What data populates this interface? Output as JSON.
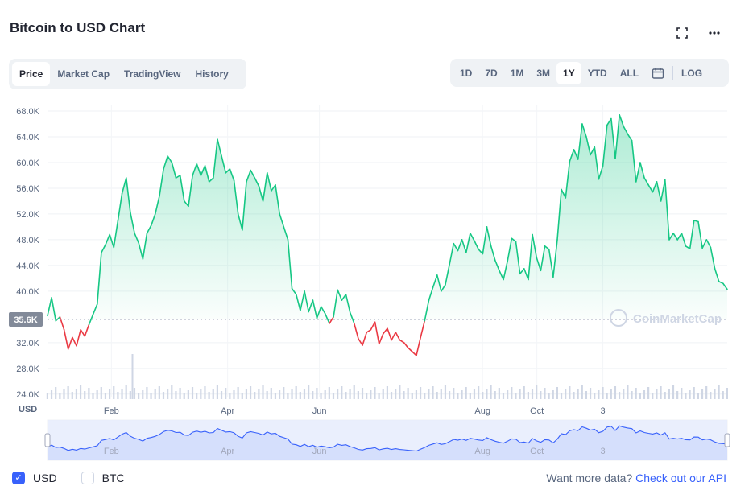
{
  "header": {
    "title": "Bitcoin to USD Chart"
  },
  "icons": {
    "fullscreen": "fullscreen-icon",
    "more": "more-icon",
    "calendar": "calendar-icon"
  },
  "tabs": [
    {
      "label": "Price",
      "active": true
    },
    {
      "label": "Market Cap",
      "active": false
    },
    {
      "label": "TradingView",
      "active": false
    },
    {
      "label": "History",
      "active": false
    }
  ],
  "ranges": [
    {
      "label": "1D",
      "active": false
    },
    {
      "label": "7D",
      "active": false
    },
    {
      "label": "1M",
      "active": false
    },
    {
      "label": "3M",
      "active": false
    },
    {
      "label": "1Y",
      "active": true
    },
    {
      "label": "YTD",
      "active": false
    },
    {
      "label": "ALL",
      "active": false
    }
  ],
  "log_label": "LOG",
  "watermark": "CoinMarketCap",
  "currency_label": "USD",
  "legend": {
    "usd": "USD",
    "btc": "BTC",
    "usd_checked": true,
    "btc_checked": false
  },
  "api": {
    "text": "Want more data?",
    "link": "Check out our API"
  },
  "colors": {
    "up": "#16c784",
    "down": "#ea3943",
    "baseline_badge": "#828a99",
    "accent": "#3861fb"
  },
  "chart_data": {
    "type": "area",
    "title": "Bitcoin to USD Chart",
    "ylabel": "USD",
    "ylim": [
      23600,
      69000
    ],
    "baseline": 35600,
    "baseline_label": "35.6K",
    "yticks": [
      "68.0K",
      "64.0K",
      "60.0K",
      "56.0K",
      "52.0K",
      "48.0K",
      "44.0K",
      "40.0K",
      "32.0K",
      "28.0K",
      "24.0K"
    ],
    "ytick_values": [
      68000,
      64000,
      60000,
      56000,
      52000,
      48000,
      44000,
      40000,
      32000,
      28000,
      24000
    ],
    "xticks": [
      {
        "label": "Feb",
        "t": 0.094
      },
      {
        "label": "Apr",
        "t": 0.265
      },
      {
        "label": "Jun",
        "t": 0.4
      },
      {
        "label": "Aug",
        "t": 0.64
      },
      {
        "label": "Oct",
        "t": 0.72
      },
      {
        "label": "3",
        "t": 0.817
      }
    ],
    "grid": true,
    "series": [
      {
        "values": [
          36200,
          39000,
          35400,
          36000,
          34000,
          31000,
          32800,
          31500,
          34000,
          33000,
          34800,
          36400,
          38000,
          46000,
          47200,
          48800,
          46800,
          51000,
          55200,
          57600,
          52200,
          49000,
          47500,
          45000,
          49000,
          50200,
          52000,
          54800,
          59000,
          61000,
          60000,
          57600,
          58000,
          54000,
          53200,
          58000,
          59800,
          58000,
          59500,
          57000,
          57600,
          63600,
          61000,
          58400,
          59000,
          57200,
          52000,
          49500,
          57000,
          58800,
          57600,
          56300,
          54000,
          58400,
          55600,
          56500,
          52000,
          50000,
          48000,
          40400,
          39500,
          37000,
          40000,
          36800,
          38600,
          35800,
          37600,
          36500,
          35000,
          36000,
          40200,
          38600,
          39500,
          36700,
          35000,
          32600,
          31600,
          33600,
          34000,
          35200,
          31800,
          33400,
          34200,
          32400,
          33600,
          32400,
          32000,
          31200,
          30600,
          30000,
          32800,
          35400,
          38600,
          40600,
          42500,
          40000,
          41000,
          44200,
          47400,
          46300,
          48000,
          46000,
          49000,
          47800,
          46500,
          45800,
          50000,
          47000,
          44800,
          43200,
          41800,
          44700,
          48200,
          47700,
          42700,
          43500,
          41800,
          48800,
          45200,
          43200,
          47000,
          46500,
          42200,
          48000,
          55800,
          54500,
          60200,
          62000,
          60500,
          66000,
          64000,
          61200,
          62400,
          57400,
          59500,
          65800,
          66800,
          60600,
          67400,
          65600,
          64400,
          63400,
          57000,
          60000,
          57600,
          56500,
          55400,
          57000,
          54000,
          57300,
          48000,
          49000,
          48000,
          49000,
          47000,
          46600,
          51000,
          50800,
          46700,
          48000,
          46800,
          43500,
          41500,
          41200,
          40300
        ],
        "color_rule": "green above baseline, red below"
      }
    ],
    "volume_note": "volume bars along bottom of plot",
    "navigator": {
      "labels": [
        "Feb",
        "Apr",
        "Jun",
        "Aug",
        "Oct",
        "3"
      ]
    }
  }
}
